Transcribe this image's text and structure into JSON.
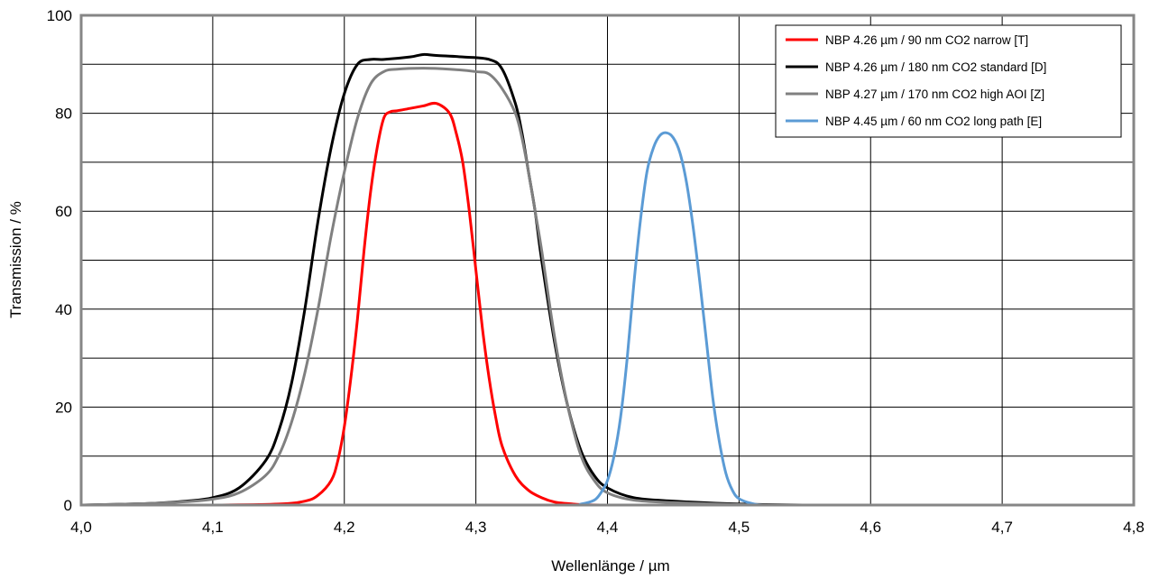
{
  "chart_data": {
    "type": "line",
    "xlabel": "Wellenlänge / µm",
    "ylabel": "Transmission / %",
    "xlim": [
      4.0,
      4.8
    ],
    "ylim": [
      0,
      100
    ],
    "x_ticks": [
      4.0,
      4.1,
      4.2,
      4.3,
      4.4,
      4.5,
      4.6,
      4.7,
      4.8
    ],
    "x_tick_labels": [
      "4,0",
      "4,1",
      "4,2",
      "4,3",
      "4,4",
      "4,5",
      "4,6",
      "4,7",
      "4,8"
    ],
    "y_ticks": [
      0,
      20,
      40,
      60,
      80,
      100
    ],
    "y_tick_labels": [
      "0",
      "20",
      "40",
      "60",
      "80",
      "100"
    ],
    "grid": true,
    "legend_position": "top-right",
    "series": [
      {
        "name": "NBP 4.26 µm / 90 nm CO2 narrow [T]",
        "color": "#ff0000",
        "x": [
          4.0,
          4.1,
          4.15,
          4.17,
          4.18,
          4.19,
          4.195,
          4.2,
          4.205,
          4.21,
          4.215,
          4.22,
          4.225,
          4.23,
          4.235,
          4.24,
          4.25,
          4.26,
          4.27,
          4.28,
          4.285,
          4.29,
          4.295,
          4.3,
          4.305,
          4.31,
          4.315,
          4.32,
          4.33,
          4.34,
          4.35,
          4.36,
          4.37,
          4.38,
          4.4,
          4.45,
          4.5,
          4.6,
          4.8
        ],
        "y": [
          0,
          0,
          0.2,
          0.8,
          2,
          5,
          9,
          16,
          26,
          38,
          52,
          64,
          73,
          79,
          80.3,
          80.5,
          81,
          81.5,
          82,
          80,
          76,
          70,
          60,
          48,
          36,
          26,
          18,
          12,
          6,
          3,
          1.5,
          0.6,
          0.3,
          0.1,
          0,
          0,
          0,
          0,
          0
        ]
      },
      {
        "name": "NBP 4.26 µm / 180 nm CO2 standard [D]",
        "color": "#000000",
        "x": [
          4.0,
          4.05,
          4.08,
          4.1,
          4.12,
          4.14,
          4.15,
          4.16,
          4.17,
          4.18,
          4.19,
          4.2,
          4.21,
          4.22,
          4.23,
          4.25,
          4.26,
          4.27,
          4.29,
          4.31,
          4.32,
          4.33,
          4.335,
          4.34,
          4.345,
          4.35,
          4.36,
          4.37,
          4.38,
          4.39,
          4.4,
          4.42,
          4.45,
          4.5,
          4.55,
          4.6,
          4.8
        ],
        "y": [
          0,
          0.3,
          0.8,
          1.5,
          3.5,
          9,
          15,
          25,
          40,
          58,
          73,
          84,
          90,
          91,
          91,
          91.5,
          92,
          91.8,
          91.5,
          91,
          89,
          82,
          76,
          68,
          60,
          50,
          33,
          20,
          11,
          6,
          3.5,
          1.5,
          0.8,
          0.2,
          0,
          0,
          0
        ]
      },
      {
        "name": "NBP 4.27 µm / 170 nm CO2 high AOI [Z]",
        "color": "#808080",
        "x": [
          4.0,
          4.05,
          4.08,
          4.1,
          4.12,
          4.14,
          4.15,
          4.16,
          4.17,
          4.18,
          4.19,
          4.2,
          4.21,
          4.22,
          4.23,
          4.24,
          4.26,
          4.28,
          4.3,
          4.31,
          4.32,
          4.33,
          4.335,
          4.34,
          4.345,
          4.35,
          4.36,
          4.37,
          4.38,
          4.39,
          4.4,
          4.42,
          4.45,
          4.5,
          4.55,
          4.6,
          4.8
        ],
        "y": [
          0,
          0.3,
          0.7,
          1.2,
          2.5,
          6,
          10,
          17,
          27,
          40,
          55,
          68,
          79,
          86,
          88.5,
          89,
          89.2,
          89,
          88.5,
          88,
          85,
          80,
          75,
          68,
          60,
          52,
          34,
          20,
          10,
          5,
          2.5,
          1,
          0.5,
          0.1,
          0,
          0,
          0
        ]
      },
      {
        "name": "NBP 4.45 µm / 60 nm CO2 long path [E]",
        "color": "#5b9bd5",
        "x": [
          4.0,
          4.3,
          4.37,
          4.38,
          4.39,
          4.395,
          4.4,
          4.405,
          4.41,
          4.415,
          4.42,
          4.425,
          4.43,
          4.435,
          4.44,
          4.445,
          4.45,
          4.455,
          4.46,
          4.465,
          4.47,
          4.475,
          4.48,
          4.485,
          4.49,
          4.495,
          4.5,
          4.51,
          4.52,
          4.55,
          4.8
        ],
        "y": [
          0,
          0,
          0,
          0.2,
          1,
          2.5,
          5,
          10,
          18,
          30,
          45,
          58,
          68,
          73,
          75.5,
          76,
          75,
          72,
          66,
          57,
          46,
          34,
          22,
          13,
          6.5,
          3,
          1.3,
          0.3,
          0,
          0,
          0
        ]
      }
    ]
  }
}
